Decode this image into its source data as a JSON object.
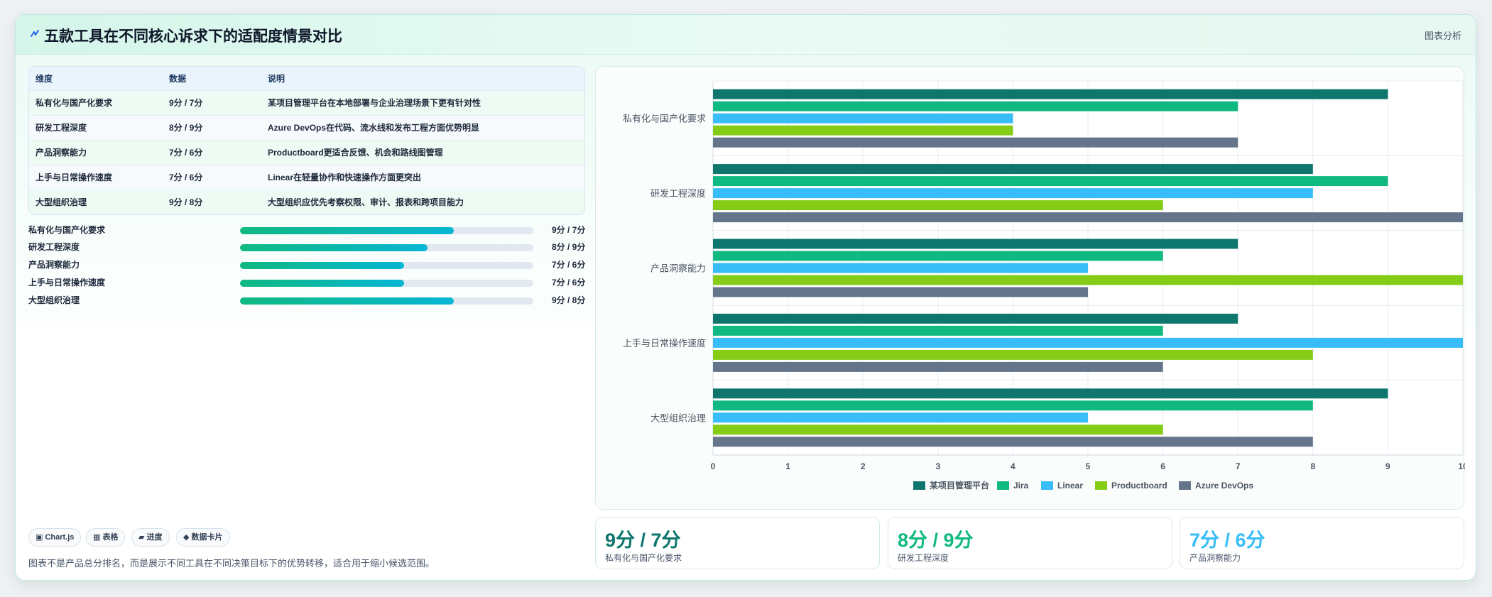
{
  "header": {
    "title": "五款工具在不同核心诉求下的适配度情景对比",
    "action": "图表分析"
  },
  "table": {
    "headers": [
      "维度",
      "数据",
      "说明"
    ],
    "rows": [
      [
        "私有化与国产化要求",
        "9分 / 7分",
        "某项目管理平台在本地部署与企业治理场景下更有针对性"
      ],
      [
        "研发工程深度",
        "8分 / 9分",
        "Azure DevOps在代码、流水线和发布工程方面优势明显"
      ],
      [
        "产品洞察能力",
        "7分 / 6分",
        "Productboard更适合反馈、机会和路线图管理"
      ],
      [
        "上手与日常操作速度",
        "7分 / 6分",
        "Linear在轻量协作和快速操作方面更突出"
      ],
      [
        "大型组织治理",
        "9分 / 8分",
        "大型组织应优先考察权限、审计、报表和跨项目能力"
      ]
    ]
  },
  "progress": [
    {
      "label": "私有化与国产化要求",
      "value": "9分 / 7分",
      "fraction": 0.73
    },
    {
      "label": "研发工程深度",
      "value": "8分 / 9分",
      "fraction": 0.64
    },
    {
      "label": "产品洞察能力",
      "value": "7分 / 6分",
      "fraction": 0.56
    },
    {
      "label": "上手与日常操作速度",
      "value": "7分 / 6分",
      "fraction": 0.56
    },
    {
      "label": "大型组织治理",
      "value": "9分 / 8分",
      "fraction": 0.73
    }
  ],
  "tags": [
    "▣ Chart.js",
    "▦ 表格",
    "▰ 进度",
    "◆ 数据卡片"
  ],
  "note": "图表不是产品总分排名，而是展示不同工具在不同决策目标下的优势转移，适合用于缩小候选范围。",
  "kpis": [
    {
      "value": "9分 / 7分",
      "label": "私有化与国产化要求",
      "color": "#0f766e"
    },
    {
      "value": "8分 / 9分",
      "label": "研发工程深度",
      "color": "#10b981"
    },
    {
      "value": "7分 / 6分",
      "label": "产品洞察能力",
      "color": "#38bdf8"
    }
  ],
  "chart_data": {
    "type": "bar",
    "orientation": "horizontal",
    "categories": [
      "私有化与国产化要求",
      "研发工程深度",
      "产品洞察能力",
      "上手与日常操作速度",
      "大型组织治理"
    ],
    "series": [
      {
        "name": "某项目管理平台",
        "color": "#0f766e",
        "values": [
          9,
          8,
          7,
          7,
          9
        ]
      },
      {
        "name": "Jira",
        "color": "#10b981",
        "values": [
          7,
          9,
          6,
          6,
          8
        ]
      },
      {
        "name": "Linear",
        "color": "#38bdf8",
        "values": [
          4,
          8,
          5,
          10,
          5
        ]
      },
      {
        "name": "Productboard",
        "color": "#84cc16",
        "values": [
          4,
          6,
          10,
          8,
          6
        ]
      },
      {
        "name": "Azure DevOps",
        "color": "#64748b",
        "values": [
          7,
          10,
          5,
          6,
          8
        ]
      }
    ],
    "xlim": [
      0,
      10
    ],
    "xticks": [
      "0",
      "1",
      "2",
      "3",
      "4",
      "5",
      "6",
      "7",
      "8",
      "9",
      "10"
    ],
    "grid": true,
    "legend": "bottom"
  }
}
